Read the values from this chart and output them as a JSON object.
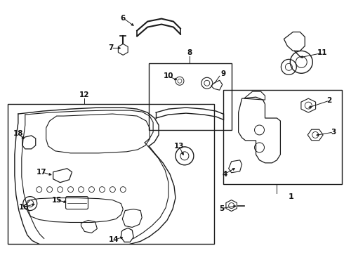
{
  "bg_color": "#ffffff",
  "line_color": "#1a1a1a",
  "text_color": "#111111",
  "fig_width": 4.9,
  "fig_height": 3.6,
  "dpi": 100
}
